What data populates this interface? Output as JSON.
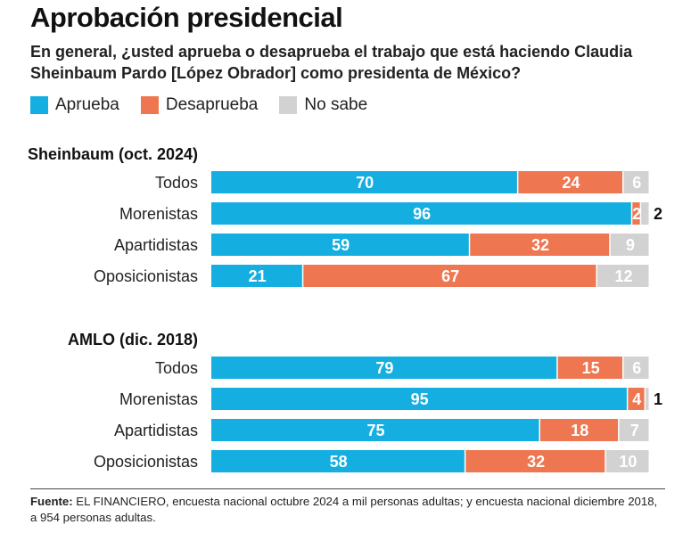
{
  "title": "Aprobación presidencial",
  "subtitle": "En general, ¿usted aprueba o desaprueba el trabajo que está haciendo Claudia Sheinbaum Pardo [López Obrador] como presidenta de México?",
  "legend": [
    {
      "label": "Aprueba",
      "color": "#15AEE0"
    },
    {
      "label": "Desaprueba",
      "color": "#EE7650"
    },
    {
      "label": "No sabe",
      "color": "#D2D2D2"
    }
  ],
  "footer": {
    "label": "Fuente:",
    "text": "EL FINANCIERO, encuesta nacional octubre 2024 a mil personas adultas; y encuesta nacional diciembre 2018, a 954 personas adultas."
  },
  "chart_data": [
    {
      "type": "bar",
      "orientation": "horizontal",
      "stacked": true,
      "title": "Sheinbaum (oct. 2024)",
      "categories": [
        "Todos",
        "Morenistas",
        "Apartidistas",
        "Oposicionistas"
      ],
      "series": [
        {
          "name": "Aprueba",
          "values": [
            70,
            96,
            59,
            21
          ]
        },
        {
          "name": "Desaprueba",
          "values": [
            24,
            2,
            32,
            67
          ]
        },
        {
          "name": "No sabe",
          "values": [
            6,
            2,
            9,
            12
          ]
        }
      ],
      "xlim": [
        0,
        100
      ]
    },
    {
      "type": "bar",
      "orientation": "horizontal",
      "stacked": true,
      "title": "AMLO (dic. 2018)",
      "categories": [
        "Todos",
        "Morenistas",
        "Apartidistas",
        "Oposicionistas"
      ],
      "series": [
        {
          "name": "Aprueba",
          "values": [
            79,
            95,
            75,
            58
          ]
        },
        {
          "name": "Desaprueba",
          "values": [
            15,
            4,
            18,
            32
          ]
        },
        {
          "name": "No sabe",
          "values": [
            6,
            1,
            7,
            10
          ]
        }
      ],
      "xlim": [
        0,
        100
      ]
    }
  ]
}
